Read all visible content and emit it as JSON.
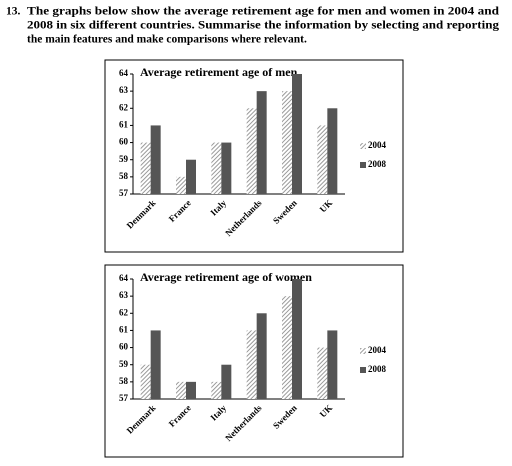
{
  "question": {
    "number": "13.",
    "lines": [
      "The graphs below show the average retirement age for men and women in 2004 and",
      "2008 in six different countries. Summarise the information by selecting and reporting",
      "the main features and make comparisons where relevant."
    ]
  },
  "chart_data": [
    {
      "type": "bar",
      "title": "Average retirement age of men",
      "categories": [
        "Denmark",
        "France",
        "Italy",
        "Netherlands",
        "Sweden",
        "UK"
      ],
      "series": [
        {
          "name": "2004",
          "color": "#9a9a9a",
          "values": [
            60,
            58,
            60,
            62,
            63,
            61
          ]
        },
        {
          "name": "2008",
          "color": "#555555",
          "values": [
            61,
            59,
            60,
            63,
            64,
            62
          ]
        }
      ],
      "ylim": [
        57,
        64
      ],
      "yticks": [
        57,
        58,
        59,
        60,
        61,
        62,
        63,
        64
      ],
      "legend": "right"
    },
    {
      "type": "bar",
      "title": "Average retirement age of women",
      "categories": [
        "Denmark",
        "France",
        "Italy",
        "Netherlands",
        "Sweden",
        "UK"
      ],
      "series": [
        {
          "name": "2004",
          "color": "#9a9a9a",
          "values": [
            59,
            58,
            58,
            61,
            63,
            60
          ]
        },
        {
          "name": "2008",
          "color": "#555555",
          "values": [
            61,
            58,
            59,
            62,
            64,
            61
          ]
        }
      ],
      "ylim": [
        57,
        64
      ],
      "yticks": [
        57,
        58,
        59,
        60,
        61,
        62,
        63,
        64
      ],
      "legend": "right"
    }
  ]
}
